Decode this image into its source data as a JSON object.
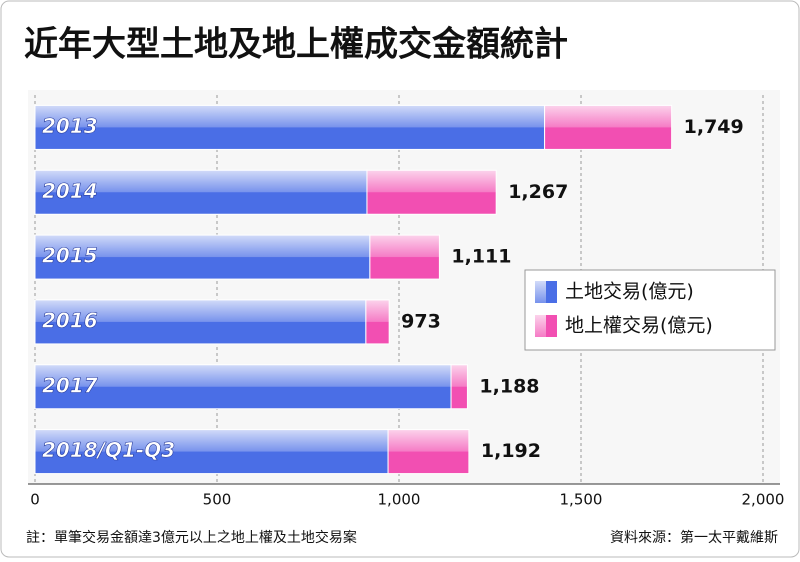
{
  "chart_data": {
    "type": "stacked-barh",
    "title": "近年大型土地及地上權成交金額統計",
    "categories": [
      "2013",
      "2014",
      "2015",
      "2016",
      "2017",
      "2018/Q1-Q3"
    ],
    "series": [
      {
        "name": "土地交易(億元)",
        "color": "#4a6ee6",
        "values": [
          1400,
          912,
          920,
          909,
          1143,
          970
        ]
      },
      {
        "name": "地上權交易(億元)",
        "color": "#f24fb2",
        "values": [
          349,
          355,
          191,
          64,
          45,
          222
        ]
      }
    ],
    "totals": [
      1749,
      1267,
      1111,
      973,
      1188,
      1192
    ],
    "total_labels": [
      "1,749",
      "1,267",
      "1,111",
      "973",
      "1,188",
      "1,192"
    ],
    "xlim": [
      0,
      2000
    ],
    "xticks": [
      0,
      500,
      {
        "value": 1000,
        "label": "1,000"
      },
      {
        "value": 1500,
        "label": "1,500"
      },
      {
        "value": 2000,
        "label": "2,000"
      }
    ],
    "grid": true,
    "legend": "right",
    "footnote": "註：單筆交易金額達3億元以上之地上權及土地交易案",
    "source": "資料來源：第一太平戴維斯"
  }
}
